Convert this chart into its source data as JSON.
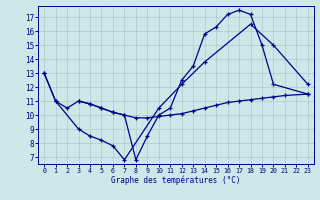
{
  "xlabel": "Graphe des températures (°C)",
  "background_color": "#cce8e8",
  "line_color": "#00008b",
  "grid_color": "#aacccc",
  "ylim": [
    6.5,
    17.8
  ],
  "xlim": [
    -0.5,
    23.5
  ],
  "yticks": [
    7,
    8,
    9,
    10,
    11,
    12,
    13,
    14,
    15,
    16,
    17
  ],
  "xticks": [
    0,
    1,
    2,
    3,
    4,
    5,
    6,
    7,
    8,
    9,
    10,
    11,
    12,
    13,
    14,
    15,
    16,
    17,
    18,
    19,
    20,
    21,
    22,
    23
  ],
  "series": [
    {
      "x": [
        0,
        1,
        2,
        3,
        4,
        5,
        6,
        7,
        8,
        9,
        10,
        11,
        12,
        13,
        14,
        15,
        16,
        17,
        18,
        19,
        20,
        23
      ],
      "y": [
        13,
        11,
        10.5,
        11,
        10.8,
        10.5,
        10.2,
        10.0,
        6.8,
        8.5,
        10.0,
        10.5,
        12.5,
        13.5,
        15.8,
        16.3,
        17.2,
        17.5,
        17.2,
        15.0,
        12.2,
        11.5
      ]
    },
    {
      "x": [
        0,
        1,
        3,
        4,
        5,
        6,
        7,
        10,
        12,
        14,
        18,
        20,
        23
      ],
      "y": [
        13,
        11,
        9.0,
        8.5,
        8.2,
        7.8,
        6.8,
        10.5,
        12.2,
        13.8,
        16.5,
        15.0,
        12.2
      ]
    },
    {
      "x": [
        3,
        4,
        5,
        6,
        7,
        8,
        9,
        10,
        11,
        12,
        13,
        14,
        15,
        16,
        17,
        18,
        19,
        20,
        21,
        23
      ],
      "y": [
        11,
        10.8,
        10.5,
        10.2,
        10.0,
        9.8,
        9.8,
        9.9,
        10.0,
        10.1,
        10.3,
        10.5,
        10.7,
        10.9,
        11.0,
        11.1,
        11.2,
        11.3,
        11.4,
        11.5
      ]
    }
  ]
}
